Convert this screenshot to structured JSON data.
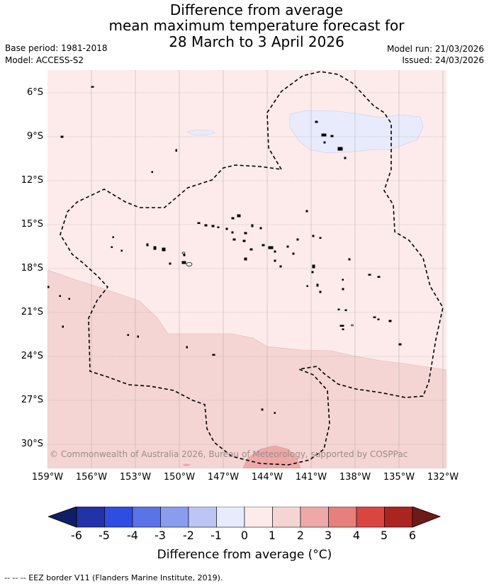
{
  "title": {
    "line1": "Difference from average",
    "line2": "mean maximum temperature forecast for",
    "line3": "28 March to 3 April 2026"
  },
  "meta": {
    "base_period": "Base period: 1981-2018",
    "model": "Model: ACCESS-S2",
    "model_run": "Model run: 21/03/2026",
    "issued": "Issued: 24/03/2026"
  },
  "map": {
    "lat_labels": [
      "6°S",
      "9°S",
      "12°S",
      "15°S",
      "18°S",
      "21°S",
      "24°S",
      "27°S",
      "30°S"
    ],
    "lon_labels": [
      "159°W",
      "156°W",
      "153°W",
      "150°W",
      "147°W",
      "144°W",
      "141°W",
      "138°W",
      "135°W",
      "132°W"
    ],
    "copyright": "© Commonwealth of Australia 2026, Bureau of Meteorology, supported by COSPPac"
  },
  "colorbar": {
    "ticks": [
      "-6",
      "-5",
      "-4",
      "-3",
      "-2",
      "-1",
      "0",
      "1",
      "2",
      "3",
      "4",
      "5",
      "6"
    ],
    "label": "Difference from average (°C)"
  },
  "colors": {
    "under": "#0d1f66",
    "bins": [
      "#2232a8",
      "#2f4de0",
      "#5a73e6",
      "#8a9cec",
      "#bcc5f3",
      "#e8ebfb",
      "#fcebea",
      "#f5d5d4",
      "#eda9a7",
      "#e6807c",
      "#da4540",
      "#ab2520"
    ],
    "over": "#6e1a17"
  },
  "footnote": "-- -- -- EEZ border V11 (Flanders Marine Institute, 2019)."
}
